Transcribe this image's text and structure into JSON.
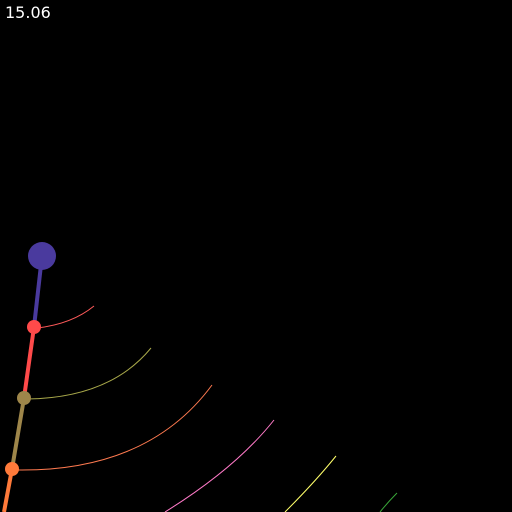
{
  "hud": {
    "timer": "15.06"
  },
  "palette": {
    "background": "#000000",
    "pivot": "#4a3a9e",
    "node_1": "#ff4a4a",
    "node_2": "#9e864a",
    "node_3": "#ff7a3a",
    "trail_1": "#ff5a5a",
    "trail_2": "#a8a84a",
    "trail_3": "#ff7a50",
    "trail_4": "#ff7ac8",
    "trail_5": "#ffff6a",
    "trail_6": "#3aa83a"
  }
}
